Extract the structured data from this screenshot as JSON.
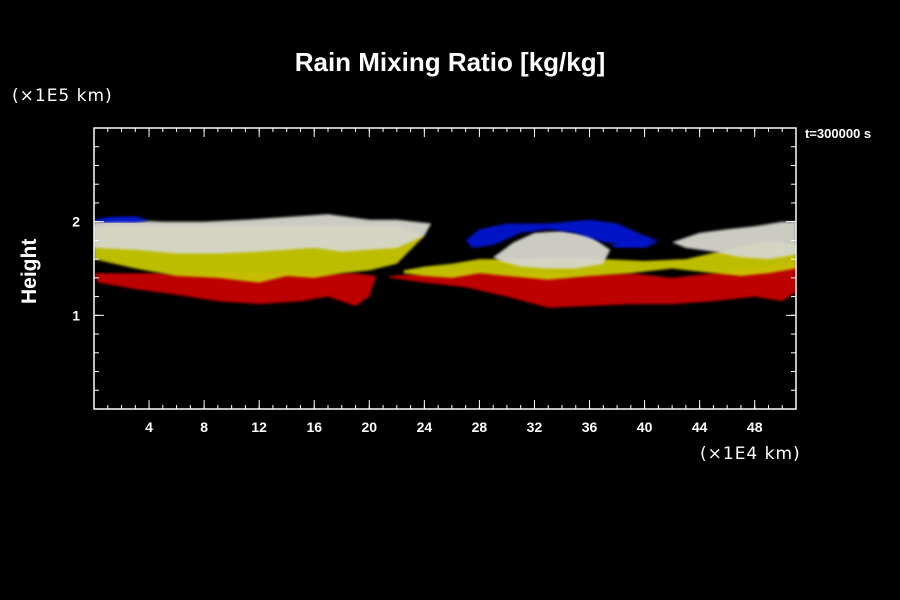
{
  "chart_data": {
    "type": "heatmap",
    "title": "Rain Mixing Ratio [kg/kg]",
    "xlabel": "",
    "ylabel": "Height",
    "x_unit": "(×1E4 km)",
    "y_unit": "(×1E5 km)",
    "time_label": "t=300000 s",
    "xlim": [
      0,
      51
    ],
    "ylim": [
      0,
      3
    ],
    "x_ticks": [
      4,
      8,
      12,
      16,
      20,
      24,
      28,
      32,
      36,
      40,
      44,
      48
    ],
    "y_ticks": [
      1,
      2
    ],
    "x_minor_step": 1,
    "y_minor_step": 0.2,
    "colors": {
      "background": "#000000",
      "low": "#cc0000",
      "low_mid": "#cccc00",
      "high": "#d8d8d0",
      "top": "#0018d0",
      "edge": "#10c010"
    },
    "layers": [
      {
        "name_hint": "red-base",
        "color": "#c80000",
        "regions": [
          {
            "x": [
              0,
              0.3,
              3,
              6,
              9,
              12,
              15,
              17,
              19,
              20,
              20.5,
              19,
              16,
              13,
              10,
              7,
              4,
              1,
              0
            ],
            "y": [
              1.45,
              1.35,
              1.28,
              1.22,
              1.15,
              1.12,
              1.15,
              1.2,
              1.1,
              1.2,
              1.42,
              1.45,
              1.45,
              1.45,
              1.45,
              1.45,
              1.45,
              1.45,
              1.45
            ]
          },
          {
            "x": [
              21.5,
              24,
              27,
              30,
              33,
              36,
              39,
              42,
              45,
              48,
              50,
              51,
              51,
              48,
              45,
              42,
              39,
              36,
              33,
              30,
              27,
              24,
              21.5
            ],
            "y": [
              1.4,
              1.35,
              1.3,
              1.2,
              1.08,
              1.1,
              1.12,
              1.12,
              1.15,
              1.2,
              1.15,
              1.25,
              1.55,
              1.5,
              1.45,
              1.4,
              1.45,
              1.45,
              1.45,
              1.45,
              1.48,
              1.45,
              1.42
            ]
          }
        ]
      },
      {
        "name_hint": "yellow-mid",
        "color": "#c8c800",
        "regions": [
          {
            "x": [
              0,
              3,
              6,
              9,
              12,
              14,
              16,
              18,
              20,
              22,
              24,
              22,
              18,
              14,
              10,
              6,
              3,
              0
            ],
            "y": [
              1.6,
              1.5,
              1.42,
              1.4,
              1.35,
              1.42,
              1.4,
              1.45,
              1.48,
              1.55,
              1.85,
              1.95,
              1.95,
              1.95,
              1.95,
              1.95,
              1.95,
              1.95
            ]
          },
          {
            "x": [
              22.5,
              24,
              26,
              28,
              30,
              33,
              36,
              39,
              42,
              45,
              47,
              49,
              51,
              51,
              49,
              46,
              43,
              40,
              37,
              34,
              31,
              28,
              26,
              24,
              22.5
            ],
            "y": [
              1.45,
              1.42,
              1.4,
              1.45,
              1.42,
              1.38,
              1.42,
              1.45,
              1.5,
              1.45,
              1.42,
              1.45,
              1.5,
              1.75,
              1.8,
              1.7,
              1.6,
              1.58,
              1.6,
              1.62,
              1.6,
              1.6,
              1.55,
              1.52,
              1.48
            ]
          }
        ]
      },
      {
        "name_hint": "white-top",
        "color": "#d6d6ce",
        "regions": [
          {
            "x": [
              0,
              2,
              5,
              8,
              11,
              14,
              17,
              20,
              22,
              24.5,
              24,
              22,
              20,
              18,
              16,
              14,
              12,
              9,
              6,
              3,
              0
            ],
            "y": [
              2.0,
              2.02,
              2.0,
              2.0,
              2.02,
              2.05,
              2.08,
              2.02,
              2.02,
              1.98,
              1.85,
              1.72,
              1.7,
              1.68,
              1.72,
              1.7,
              1.68,
              1.66,
              1.66,
              1.7,
              1.72
            ]
          },
          {
            "x": [
              29,
              30.5,
              32,
              34,
              36,
              37.5,
              37,
              35,
              33,
              31,
              29.5,
              29
            ],
            "y": [
              1.62,
              1.78,
              1.88,
              1.9,
              1.85,
              1.7,
              1.55,
              1.5,
              1.5,
              1.52,
              1.58,
              1.62
            ]
          },
          {
            "x": [
              42,
              44,
              46,
              48,
              50,
              51,
              51,
              49,
              47,
              45,
              43,
              42
            ],
            "y": [
              1.78,
              1.88,
              1.92,
              1.95,
              2.0,
              2.0,
              1.65,
              1.6,
              1.62,
              1.68,
              1.72,
              1.78
            ]
          }
        ]
      },
      {
        "name_hint": "blue-cap",
        "color": "#0018d0",
        "regions": [
          {
            "x": [
              0,
              1,
              3,
              4,
              3,
              1,
              0
            ],
            "y": [
              2.02,
              2.05,
              2.06,
              2.01,
              1.99,
              1.99,
              2.0
            ]
          },
          {
            "x": [
              27,
              28,
              30,
              33,
              36,
              38,
              40,
              41,
              39,
              37,
              35,
              33,
              31,
              29,
              27.5,
              27
            ],
            "y": [
              1.8,
              1.92,
              1.98,
              1.98,
              2.02,
              1.98,
              1.85,
              1.8,
              1.75,
              1.78,
              1.88,
              1.92,
              1.88,
              1.75,
              1.72,
              1.8
            ]
          },
          {
            "x": [
              38,
              40,
              41,
              40,
              38,
              37.5,
              38
            ],
            "y": [
              1.72,
              1.72,
              1.78,
              1.8,
              1.78,
              1.74,
              1.72
            ]
          }
        ]
      }
    ]
  }
}
